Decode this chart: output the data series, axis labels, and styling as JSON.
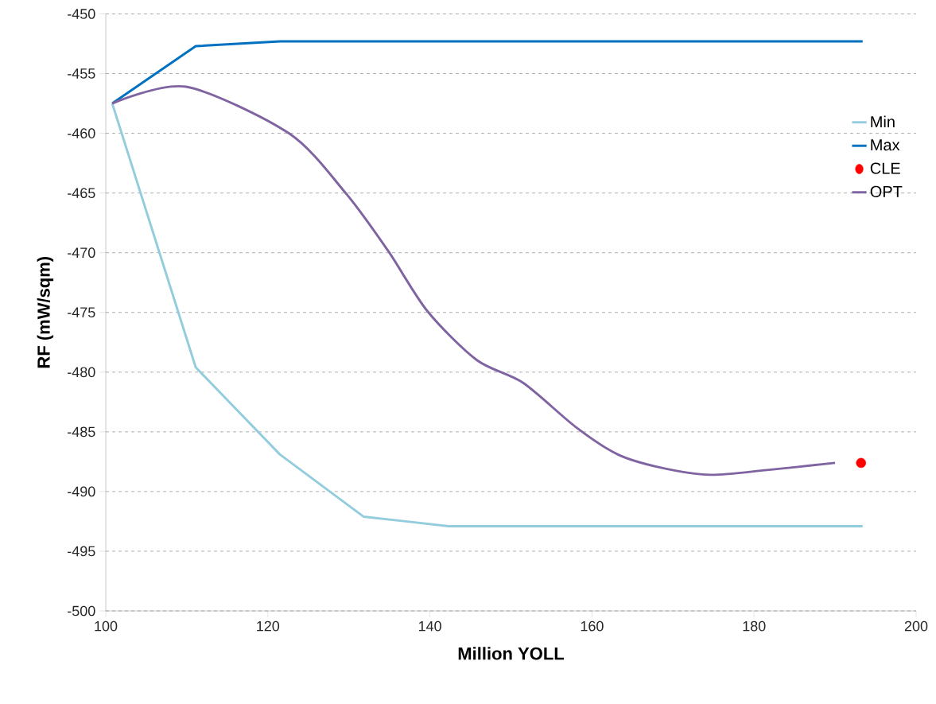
{
  "chart_data": {
    "type": "line",
    "xlabel": "Million YOLL",
    "ylabel": "RF (mW/sqm)",
    "xlim": [
      100,
      200
    ],
    "xticks": [
      100,
      120,
      140,
      160,
      180,
      200
    ],
    "ylim": [
      -500,
      -450
    ],
    "yticks": [
      -500,
      -495,
      -490,
      -485,
      -480,
      -475,
      -470,
      -465,
      -460,
      -455,
      -450
    ],
    "grid": "y",
    "legend": "right",
    "series": [
      {
        "name": "Min",
        "color": "#93cddd",
        "marker": "none",
        "x": [
          100.8,
          111.1,
          121.5,
          131.8,
          142.3,
          193.4
        ],
        "values": [
          -457.5,
          -479.6,
          -486.9,
          -492.1,
          -492.9,
          -492.9
        ]
      },
      {
        "name": "Max",
        "color": "#0070c0",
        "marker": "none",
        "x": [
          100.8,
          111.1,
          121.5,
          193.4
        ],
        "values": [
          -457.5,
          -452.7,
          -452.3,
          -452.3
        ]
      },
      {
        "name": "CLE",
        "type": "scatter",
        "color": "#ff0000",
        "marker": "circle",
        "x": [
          193.2
        ],
        "values": [
          -487.6
        ]
      },
      {
        "name": "OPT",
        "color": "#8064a2",
        "marker": "none",
        "x": [
          100.8,
          109.9,
          122.6,
          129.6,
          134.8,
          139.7,
          145.8,
          151.5,
          158.0,
          163.2,
          168.5,
          174.6,
          181.6,
          190.0
        ],
        "values": [
          -457.5,
          -456.1,
          -460.0,
          -465.0,
          -469.8,
          -474.9,
          -479.0,
          -480.9,
          -484.6,
          -486.9,
          -488.0,
          -488.6,
          -488.2,
          -487.6
        ]
      }
    ]
  }
}
